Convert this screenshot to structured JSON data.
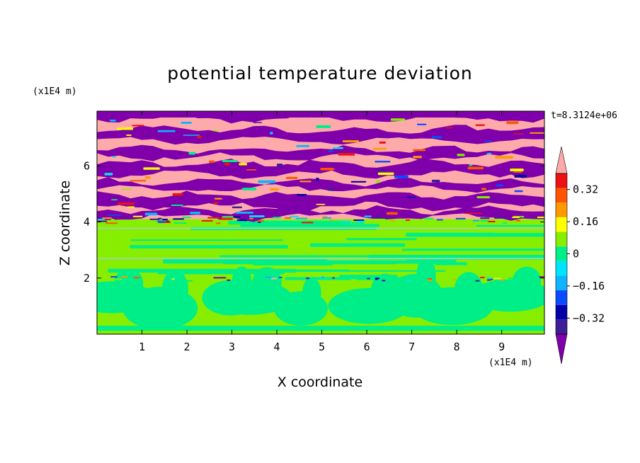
{
  "chart_data": {
    "type": "heatmap",
    "title": "potential temperature deviation",
    "xlabel": "X coordinate",
    "ylabel": "Z coordinate",
    "x_unit": "(x1E4 m)",
    "z_unit": "(x1E4 m)",
    "time_label": "t=8.3124e+06",
    "xlim": [
      0,
      9.95
    ],
    "ylim": [
      0,
      7.95
    ],
    "x_ticks": [
      1,
      2,
      3,
      4,
      5,
      6,
      7,
      8,
      9
    ],
    "y_ticks": [
      2,
      4,
      6
    ],
    "colorbar": {
      "levels": [
        -0.48,
        -0.4,
        -0.32,
        -0.24,
        -0.16,
        -0.08,
        0,
        0.08,
        0.16,
        0.24,
        0.32,
        0.4,
        0.48
      ],
      "tick_values": [
        -0.32,
        -0.16,
        0,
        0.16,
        0.32
      ],
      "tick_labels": [
        "−0.32",
        "−0.16",
        "0",
        "0.16",
        "0.32"
      ],
      "colors": [
        "#7f00aa",
        "#3c1e96",
        "#0000aa",
        "#0b4bff",
        "#0fb4ff",
        "#00e5ff",
        "#00ee88",
        "#88ee00",
        "#ffff00",
        "#ff9900",
        "#ff5500",
        "#ee1111",
        "#ffaaaa"
      ],
      "extend": "both"
    },
    "regions": [
      {
        "z_range": [
          0,
          2.0
        ],
        "description_value": "mix of -0.08..0 (green-cyan) blobs in 0..0.08 (lime) background"
      },
      {
        "z_range": [
          2.0,
          4.1
        ],
        "description_value": "0..0.08 (lime) with -0.08..0 (green) horizontal streaks"
      },
      {
        "z_range": [
          4.1,
          7.95
        ],
        "description_value": "alternating bands below -0.48 (purple) and above 0.48 (pink)"
      }
    ]
  }
}
